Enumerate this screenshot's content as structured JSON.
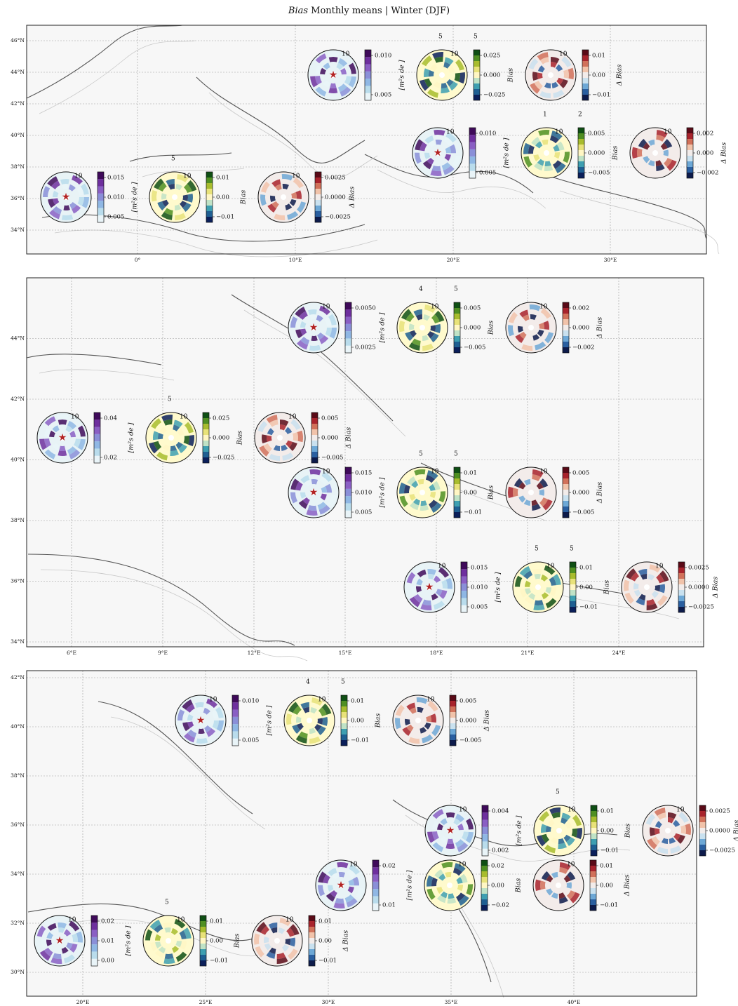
{
  "title": {
    "italic": "Bias",
    "rest": " Monthly means | Winter (DJF)"
  },
  "colors": {
    "land": "#f7f7f7",
    "coast": "#555555",
    "border": "#c8c8c8",
    "grid": "#999999",
    "star": "#b22222",
    "blue_purple": [
      "#e9f4f8",
      "#b9dcec",
      "#8fb7e4",
      "#8a8fd8",
      "#8a5fc4",
      "#6e2f9e",
      "#3f0a5a"
    ],
    "yellow_green": [
      "#0b1f5a",
      "#1f5f92",
      "#3e9fb1",
      "#bfe2c6",
      "#fff6c4",
      "#e8e27a",
      "#a8bc2e",
      "#4f8f22",
      "#0f4f14"
    ],
    "red_blue": [
      "#0d1b4b",
      "#2a5fa0",
      "#6da8d6",
      "#c9e1ef",
      "#f2ecea",
      "#f1c3aa",
      "#d1715a",
      "#a8232c",
      "#5a0a17"
    ],
    "face_bias": "#e8f3f6",
    "face_model": "#fffacd",
    "face_delta": "#f3ecea"
  },
  "panels": [
    {
      "lon_ticks": [
        "0°",
        "10°E",
        "20°E",
        "30°E"
      ],
      "lat_ticks": [
        "34°N",
        "36°N",
        "38°N",
        "40°N",
        "42°N",
        "44°N",
        "46°N"
      ],
      "sites": [
        {
          "bias_ticks": [
            "0.015",
            "0.010",
            "0.005"
          ],
          "model_ticks": [
            "0.01",
            "0.00",
            "−0.01"
          ],
          "delta_ticks": [
            "0.0025",
            "0.0000",
            "−0.0025"
          ],
          "ring": "10",
          "top_labels": [
            "5"
          ]
        },
        {
          "bias_ticks": [
            "0.010",
            "0.005"
          ],
          "model_ticks": [
            "0.025",
            "0.000",
            "−0.025"
          ],
          "delta_ticks": [
            "0.01",
            "0.00",
            "−0.01"
          ],
          "ring": "10",
          "top_labels": [
            "5",
            "5"
          ]
        },
        {
          "bias_ticks": [
            "0.010",
            "0.005"
          ],
          "model_ticks": [
            "0.005",
            "0.000",
            "−0.005"
          ],
          "delta_ticks": [
            "0.002",
            "0.000",
            "−0.002"
          ],
          "ring": "10",
          "top_labels": [
            "1",
            "2"
          ]
        }
      ]
    },
    {
      "lon_ticks": [
        "6°E",
        "9°E",
        "12°E",
        "15°E",
        "18°E",
        "21°E",
        "24°E"
      ],
      "lat_ticks": [
        "34°N",
        "36°N",
        "38°N",
        "40°N",
        "42°N",
        "44°N"
      ],
      "sites": [
        {
          "bias_ticks": [
            "0.0050",
            "0.0025"
          ],
          "model_ticks": [
            "0.005",
            "0.000",
            "−0.005"
          ],
          "delta_ticks": [
            "0.002",
            "0.000",
            "−0.002"
          ],
          "ring": "10",
          "top_labels": [
            "4",
            "5"
          ]
        },
        {
          "bias_ticks": [
            "0.04",
            "0.02"
          ],
          "model_ticks": [
            "0.025",
            "0.000",
            "−0.025"
          ],
          "delta_ticks": [
            "0.005",
            "0.000",
            "−0.005"
          ],
          "ring": "10",
          "top_labels": [
            "5"
          ]
        },
        {
          "bias_ticks": [
            "0.015",
            "0.010",
            "0.005"
          ],
          "model_ticks": [
            "0.01",
            "0.00",
            "−0.01"
          ],
          "delta_ticks": [
            "0.005",
            "0.000",
            "−0.005"
          ],
          "ring": "10",
          "top_labels": [
            "5",
            "5"
          ]
        },
        {
          "bias_ticks": [
            "0.015",
            "0.010",
            "0.005"
          ],
          "model_ticks": [
            "0.01",
            "0.00",
            "−0.01"
          ],
          "delta_ticks": [
            "0.0025",
            "0.0000",
            "−0.0025"
          ],
          "ring": "10",
          "top_labels": [
            "5",
            "5"
          ]
        }
      ]
    },
    {
      "lon_ticks": [
        "20°E",
        "25°E",
        "30°E",
        "35°E",
        "40°E"
      ],
      "lat_ticks": [
        "30°N",
        "32°N",
        "34°N",
        "36°N",
        "38°N",
        "40°N",
        "42°N"
      ],
      "sites": [
        {
          "bias_ticks": [
            "0.010",
            "0.005"
          ],
          "model_ticks": [
            "0.01",
            "0.00",
            "−0.01"
          ],
          "delta_ticks": [
            "0.005",
            "0.000",
            "−0.005"
          ],
          "ring": "10",
          "top_labels": [
            "4",
            "5"
          ]
        },
        {
          "bias_ticks": [
            "0.004",
            "0.002"
          ],
          "model_ticks": [
            "0.01",
            "0.00",
            "−0.01"
          ],
          "delta_ticks": [
            "0.0025",
            "0.0000",
            "−0.0025"
          ],
          "ring": "10",
          "top_labels": [
            "5"
          ]
        },
        {
          "bias_ticks": [
            "0.02",
            "0.01"
          ],
          "model_ticks": [
            "0.02",
            "0.00",
            "−0.02"
          ],
          "delta_ticks": [
            "0.01",
            "0.00",
            "−0.01"
          ],
          "ring": "10",
          "top_labels": []
        },
        {
          "bias_ticks": [
            "0.02",
            "0.01",
            "0.00"
          ],
          "model_ticks": [
            "0.01",
            "0.00",
            "−0.01"
          ],
          "delta_ticks": [
            "0.01",
            "0.00",
            "−0.01"
          ],
          "ring": "10",
          "top_labels": [
            "5"
          ]
        }
      ]
    }
  ],
  "labels": {
    "bias": "Bias",
    "delta": "Δ Bias",
    "units": "[m²s de ]"
  },
  "chart_data": {
    "type": "polar-bar",
    "title": "Bias Monthly means | Winter (DJF)",
    "description_of_values": "wind-rose style bias per station: bias, model, delta bias",
    "panels": 3
  }
}
